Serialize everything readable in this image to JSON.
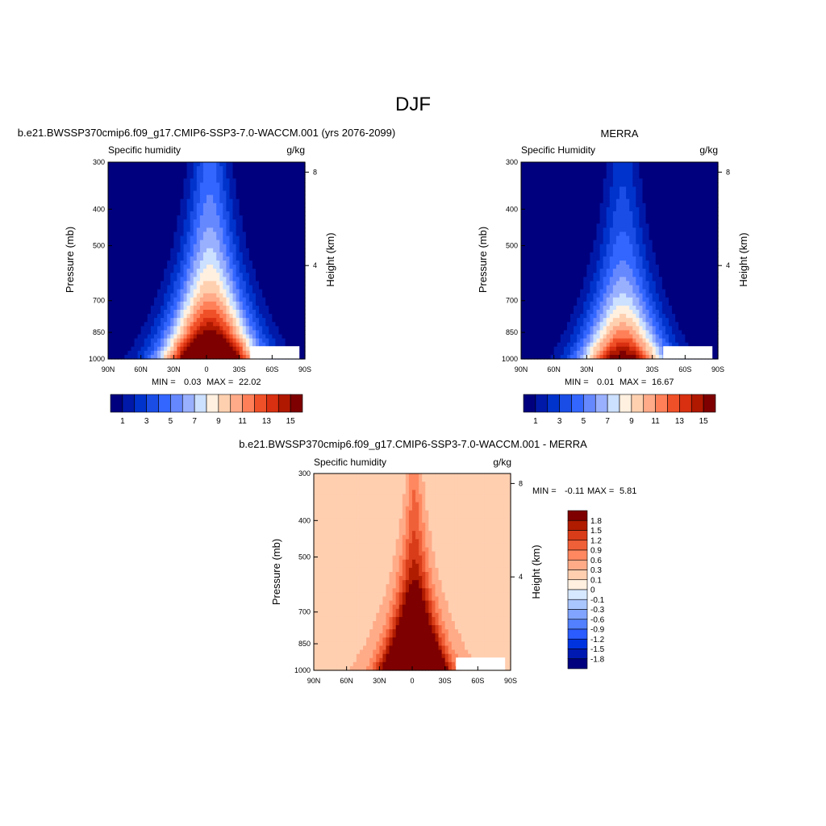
{
  "figure": {
    "title": "DJF"
  },
  "colors": {
    "abs_palette": [
      "#00007f",
      "#0019a8",
      "#0033cc",
      "#1a4de6",
      "#3366ff",
      "#6688ff",
      "#99b0ff",
      "#cce0ff",
      "#fff0e0",
      "#ffd0b0",
      "#ffaa88",
      "#ff8058",
      "#f05028",
      "#d83010",
      "#b01800",
      "#7f0000"
    ],
    "diff_palette": [
      "#00007f",
      "#0019b0",
      "#0033e0",
      "#2a5cff",
      "#5280ff",
      "#80a4ff",
      "#aac6ff",
      "#d6e8ff",
      "#fff0e0",
      "#ffcfb0",
      "#ffab88",
      "#ff8860",
      "#f06038",
      "#d83c18",
      "#b01c00",
      "#7f0000"
    ]
  },
  "chart_data": [
    {
      "type": "heatmap",
      "panel": "model",
      "title": "b.e21.BWSSP370cmip6.f09_g17.CMIP6-SSP3-7.0-WACCM.001 (yrs 2076-2099)",
      "left_label": "Specific humidity",
      "right_label": "g/kg",
      "xlabel": "",
      "ylabel": "Pressure (mb)",
      "y2label": "Height (km)",
      "x_ticks": [
        "90N",
        "60N",
        "30N",
        "0",
        "30S",
        "60S",
        "90S"
      ],
      "x_range": [
        90,
        -90
      ],
      "y_ticks": [
        300,
        400,
        500,
        700,
        850,
        1000
      ],
      "y_range": [
        1000,
        300
      ],
      "y2_ticks": [
        8,
        4
      ],
      "stats": {
        "min_label": "MIN =",
        "min": "0.03",
        "max_label": "MAX =",
        "max": "22.02"
      },
      "levels": [
        1,
        2,
        3,
        4,
        5,
        6,
        7,
        8,
        9,
        10,
        11,
        12,
        13,
        14,
        15
      ],
      "colorbar_labels": [
        "1",
        "3",
        "5",
        "7",
        "9",
        "11",
        "13",
        "15"
      ],
      "field": {
        "peak": 22,
        "peak_lat": -3,
        "scale_height_mb": 430,
        "width_surface": 42,
        "width_top": 16
      }
    },
    {
      "type": "heatmap",
      "panel": "obs",
      "title": "MERRA",
      "left_label": "Specific Humidity",
      "right_label": "g/kg",
      "xlabel": "",
      "ylabel": "Pressure (mb)",
      "y2label": "Height (km)",
      "x_ticks": [
        "90N",
        "60N",
        "30N",
        "0",
        "30S",
        "60S",
        "90S"
      ],
      "x_range": [
        90,
        -90
      ],
      "y_ticks": [
        300,
        400,
        500,
        700,
        850,
        1000
      ],
      "y_range": [
        1000,
        300
      ],
      "y2_ticks": [
        8,
        4
      ],
      "stats": {
        "min_label": "MIN =",
        "min": "0.01",
        "max_label": "MAX =",
        "max": "16.67"
      },
      "levels": [
        1,
        2,
        3,
        4,
        5,
        6,
        7,
        8,
        9,
        10,
        11,
        12,
        13,
        14,
        15
      ],
      "colorbar_labels": [
        "1",
        "3",
        "5",
        "7",
        "9",
        "11",
        "13",
        "15"
      ],
      "field": {
        "peak": 16.7,
        "peak_lat": -3,
        "scale_height_mb": 380,
        "width_surface": 38,
        "width_top": 14
      }
    },
    {
      "type": "heatmap",
      "panel": "difference",
      "title": "b.e21.BWSSP370cmip6.f09_g17.CMIP6-SSP3-7.0-WACCM.001 - MERRA",
      "left_label": "Specific humidity",
      "right_label": "g/kg",
      "xlabel": "",
      "ylabel": "Pressure (mb)",
      "y2label": "Height (km)",
      "x_ticks": [
        "90N",
        "60N",
        "30N",
        "0",
        "30S",
        "60S",
        "90S"
      ],
      "x_range": [
        90,
        -90
      ],
      "y_ticks": [
        300,
        400,
        500,
        700,
        850,
        1000
      ],
      "y_range": [
        1000,
        300
      ],
      "y2_ticks": [
        8,
        4
      ],
      "stats": {
        "min_label": "MIN =",
        "min": "-0.11",
        "max_label": "MAX =",
        "max": "5.81"
      },
      "levels": [
        -1.8,
        -1.5,
        -1.2,
        -0.9,
        -0.6,
        -0.3,
        -0.1,
        0,
        0.1,
        0.3,
        0.6,
        0.9,
        1.2,
        1.5,
        1.8
      ],
      "colorbar_labels": [
        "1.8",
        "1.5",
        "1.2",
        "0.9",
        "0.6",
        "0.3",
        "0.1",
        "0",
        "-0.1",
        "-0.3",
        "-0.6",
        "-0.9",
        "-1.2",
        "-1.5",
        "-1.8"
      ],
      "field": {
        "peak": 5.8,
        "peak_lat": -2,
        "scale_height_mb": 320,
        "width_surface": 25,
        "width_top": 6
      }
    }
  ]
}
